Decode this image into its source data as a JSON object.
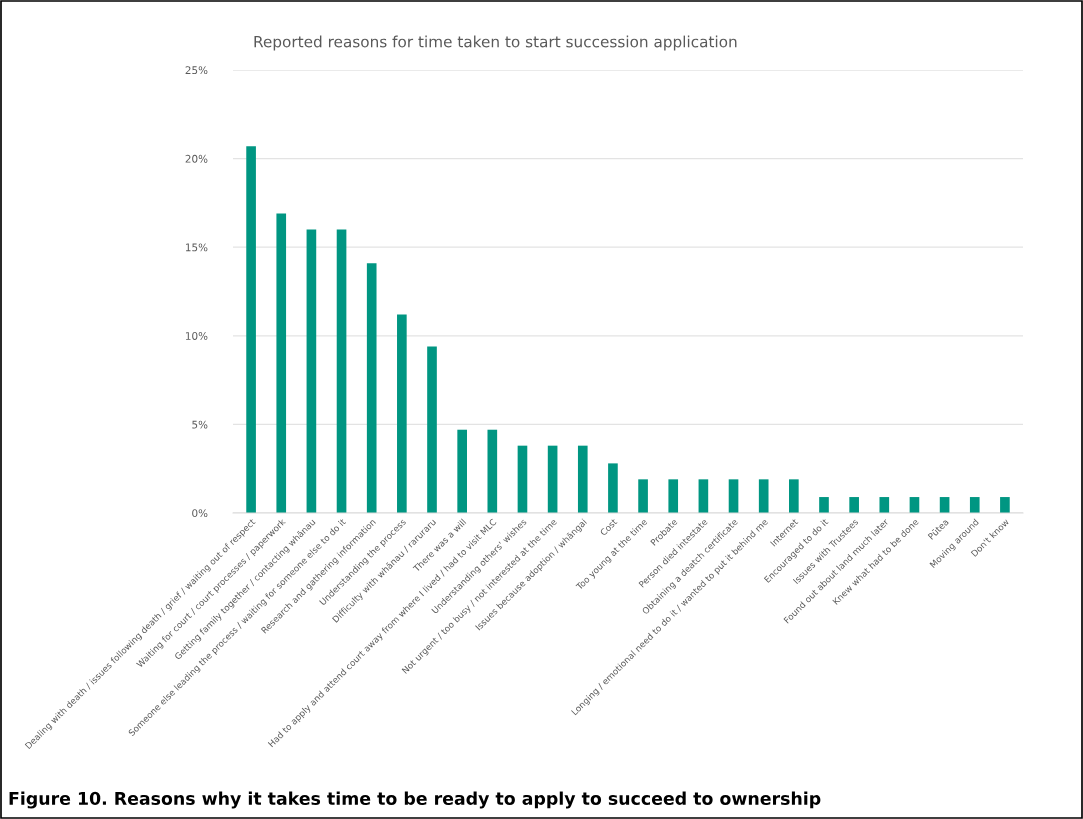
{
  "chart_data": {
    "type": "bar",
    "title": "Reported reasons for time taken to start succession application",
    "categories": [
      "Dealing with death / issues following death / grief / waiting out of respect",
      "Waiting for court / court processes / paperwork",
      "Getting family together / contacting whānau",
      "Someone else leading the process / waiting for someone else to do it",
      "Research and gathering information",
      "Understanding the process",
      "Difficulty with whānau / raruraru",
      "There was a will",
      "Had to apply and attend court away from where I lived / had to visit MLC",
      "Understanding others' wishes",
      "Not urgent / too busy / not interested at the time",
      "Issues because adoption / whāngai",
      "Cost",
      "Too young at the time",
      "Probate",
      "Person died intestate",
      "Obtaining a deatch certificate",
      "Longing / emotional need to do it / wanted to put it behind me",
      "Internet",
      "Encouraged to do it",
      "Issues with Trustees",
      "Found out about land much later",
      "Knew what had to be done",
      "Pūtea",
      "Moving around",
      "Don't know"
    ],
    "values": [
      20.7,
      16.9,
      16.0,
      16.0,
      14.1,
      11.2,
      9.4,
      4.7,
      4.7,
      3.8,
      3.8,
      3.8,
      2.8,
      1.9,
      1.9,
      1.9,
      1.9,
      1.9,
      1.9,
      0.9,
      0.9,
      0.9,
      0.9,
      0.9,
      0.9,
      0.9
    ],
    "color": "#009682",
    "ylim": [
      0,
      25
    ],
    "yticks": [
      {
        "value": 0,
        "label": "0%"
      },
      {
        "value": 5,
        "label": "5%"
      },
      {
        "value": 10,
        "label": "10%"
      },
      {
        "value": 15,
        "label": "15%"
      },
      {
        "value": 20,
        "label": "20%"
      },
      {
        "value": 25,
        "label": "25%"
      }
    ],
    "grid": "y",
    "annotations": [
      "Figure 10. Reasons why it takes time to be ready to apply to succeed to ownership"
    ]
  }
}
